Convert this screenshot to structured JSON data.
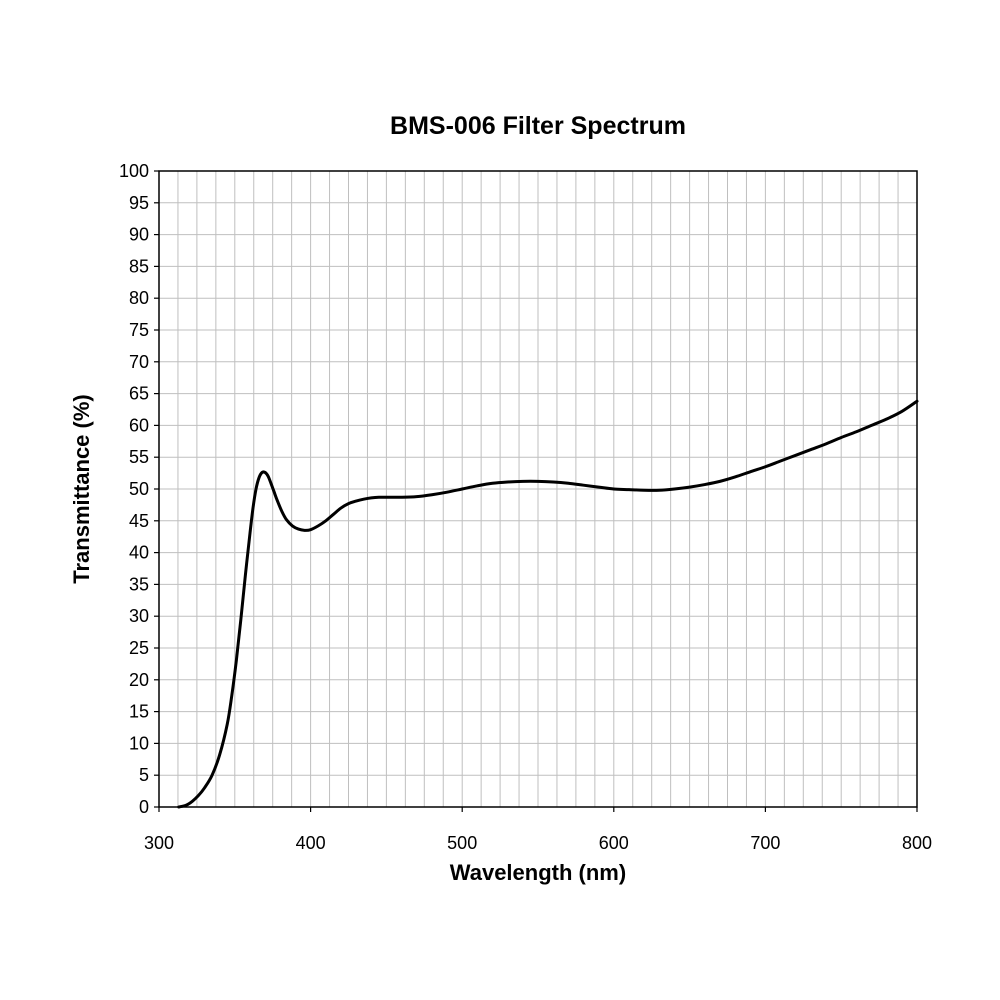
{
  "chart_data": {
    "type": "line",
    "title": "BMS-006 Filter Spectrum",
    "xlabel": "Wavelength (nm)",
    "ylabel": "Transmittance (%)",
    "xlim": [
      300,
      800
    ],
    "ylim": [
      0,
      100
    ],
    "x_ticks": [
      300,
      400,
      500,
      600,
      700,
      800
    ],
    "y_ticks": [
      0,
      5,
      10,
      15,
      20,
      25,
      30,
      35,
      40,
      45,
      50,
      55,
      60,
      65,
      70,
      75,
      80,
      85,
      90,
      95,
      100
    ],
    "x_minor_step": 12.5,
    "grid": true,
    "legend": "none",
    "line_color": "#000000",
    "grid_color": "#bfbfbf",
    "series": [
      {
        "x": [
          313,
          318,
          322,
          326,
          330,
          335,
          340,
          345,
          348,
          351,
          354,
          357,
          360,
          362,
          364,
          366,
          368,
          370,
          372,
          374,
          376,
          378,
          381,
          384,
          388,
          392,
          396,
          400,
          405,
          410,
          415,
          420,
          425,
          430,
          435,
          440,
          445,
          450,
          460,
          470,
          480,
          490,
          500,
          510,
          520,
          530,
          540,
          550,
          560,
          570,
          580,
          590,
          600,
          610,
          620,
          630,
          640,
          650,
          660,
          670,
          680,
          690,
          700,
          710,
          720,
          730,
          740,
          750,
          760,
          770,
          780,
          790,
          800
        ],
        "y": [
          0,
          0.3,
          0.9,
          1.8,
          3,
          5,
          8.2,
          13,
          17.5,
          23,
          29.5,
          36.5,
          43,
          47,
          50,
          51.8,
          52.6,
          52.6,
          52.0,
          50.8,
          49.5,
          48.2,
          46.5,
          45.2,
          44.2,
          43.7,
          43.5,
          43.6,
          44.2,
          45.0,
          46.0,
          47.0,
          47.7,
          48.1,
          48.4,
          48.6,
          48.7,
          48.7,
          48.7,
          48.8,
          49.1,
          49.5,
          50.0,
          50.5,
          50.9,
          51.1,
          51.2,
          51.2,
          51.1,
          50.9,
          50.6,
          50.3,
          50.0,
          49.9,
          49.8,
          49.8,
          50.0,
          50.3,
          50.7,
          51.2,
          51.9,
          52.7,
          53.5,
          54.4,
          55.3,
          56.2,
          57.1,
          58.1,
          59.0,
          60.0,
          61.0,
          62.2,
          63.8
        ]
      }
    ]
  }
}
